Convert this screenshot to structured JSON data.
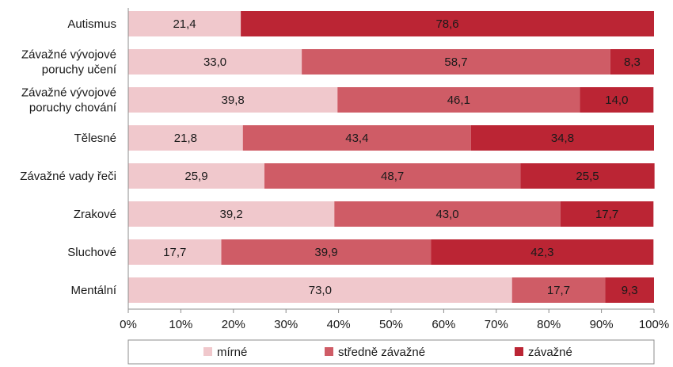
{
  "chart_data": {
    "type": "bar",
    "orientation": "horizontal",
    "stacked": "percent",
    "categories": [
      [
        "Autismus"
      ],
      [
        "Závažné vývojové",
        "poruchy učení"
      ],
      [
        "Závažné vývojové",
        "poruchy chování"
      ],
      [
        "Tělesné"
      ],
      [
        "Závažné vady řeči"
      ],
      [
        "Zrakové"
      ],
      [
        "Sluchové"
      ],
      [
        "Mentální"
      ]
    ],
    "series": [
      {
        "name": "mírné",
        "color": "#f0c8cc",
        "values": [
          21.4,
          33.0,
          39.8,
          21.8,
          25.9,
          39.2,
          17.7,
          73.0
        ],
        "labels": [
          "21,4",
          "33,0",
          "39,8",
          "21,8",
          "25,9",
          "39,2",
          "17,7",
          "73,0"
        ]
      },
      {
        "name": "středně závažné",
        "color": "#cf5c66",
        "values": [
          0,
          58.7,
          46.1,
          43.4,
          48.7,
          43.0,
          39.9,
          17.7
        ],
        "labels": [
          "",
          "58,7",
          "46,1",
          "43,4",
          "48,7",
          "43,0",
          "39,9",
          "17,7"
        ]
      },
      {
        "name": "závažné",
        "color": "#bb2534",
        "values": [
          78.6,
          8.3,
          14.0,
          34.8,
          25.5,
          17.7,
          42.3,
          9.3
        ],
        "labels": [
          "78,6",
          "8,3",
          "14,0",
          "34,8",
          "25,5",
          "17,7",
          "42,3",
          "9,3"
        ]
      }
    ],
    "x_ticks": [
      "0%",
      "10%",
      "20%",
      "30%",
      "40%",
      "50%",
      "60%",
      "70%",
      "80%",
      "90%",
      "100%"
    ],
    "xlim": [
      0,
      100
    ],
    "grid": false,
    "legend_position": "bottom"
  }
}
